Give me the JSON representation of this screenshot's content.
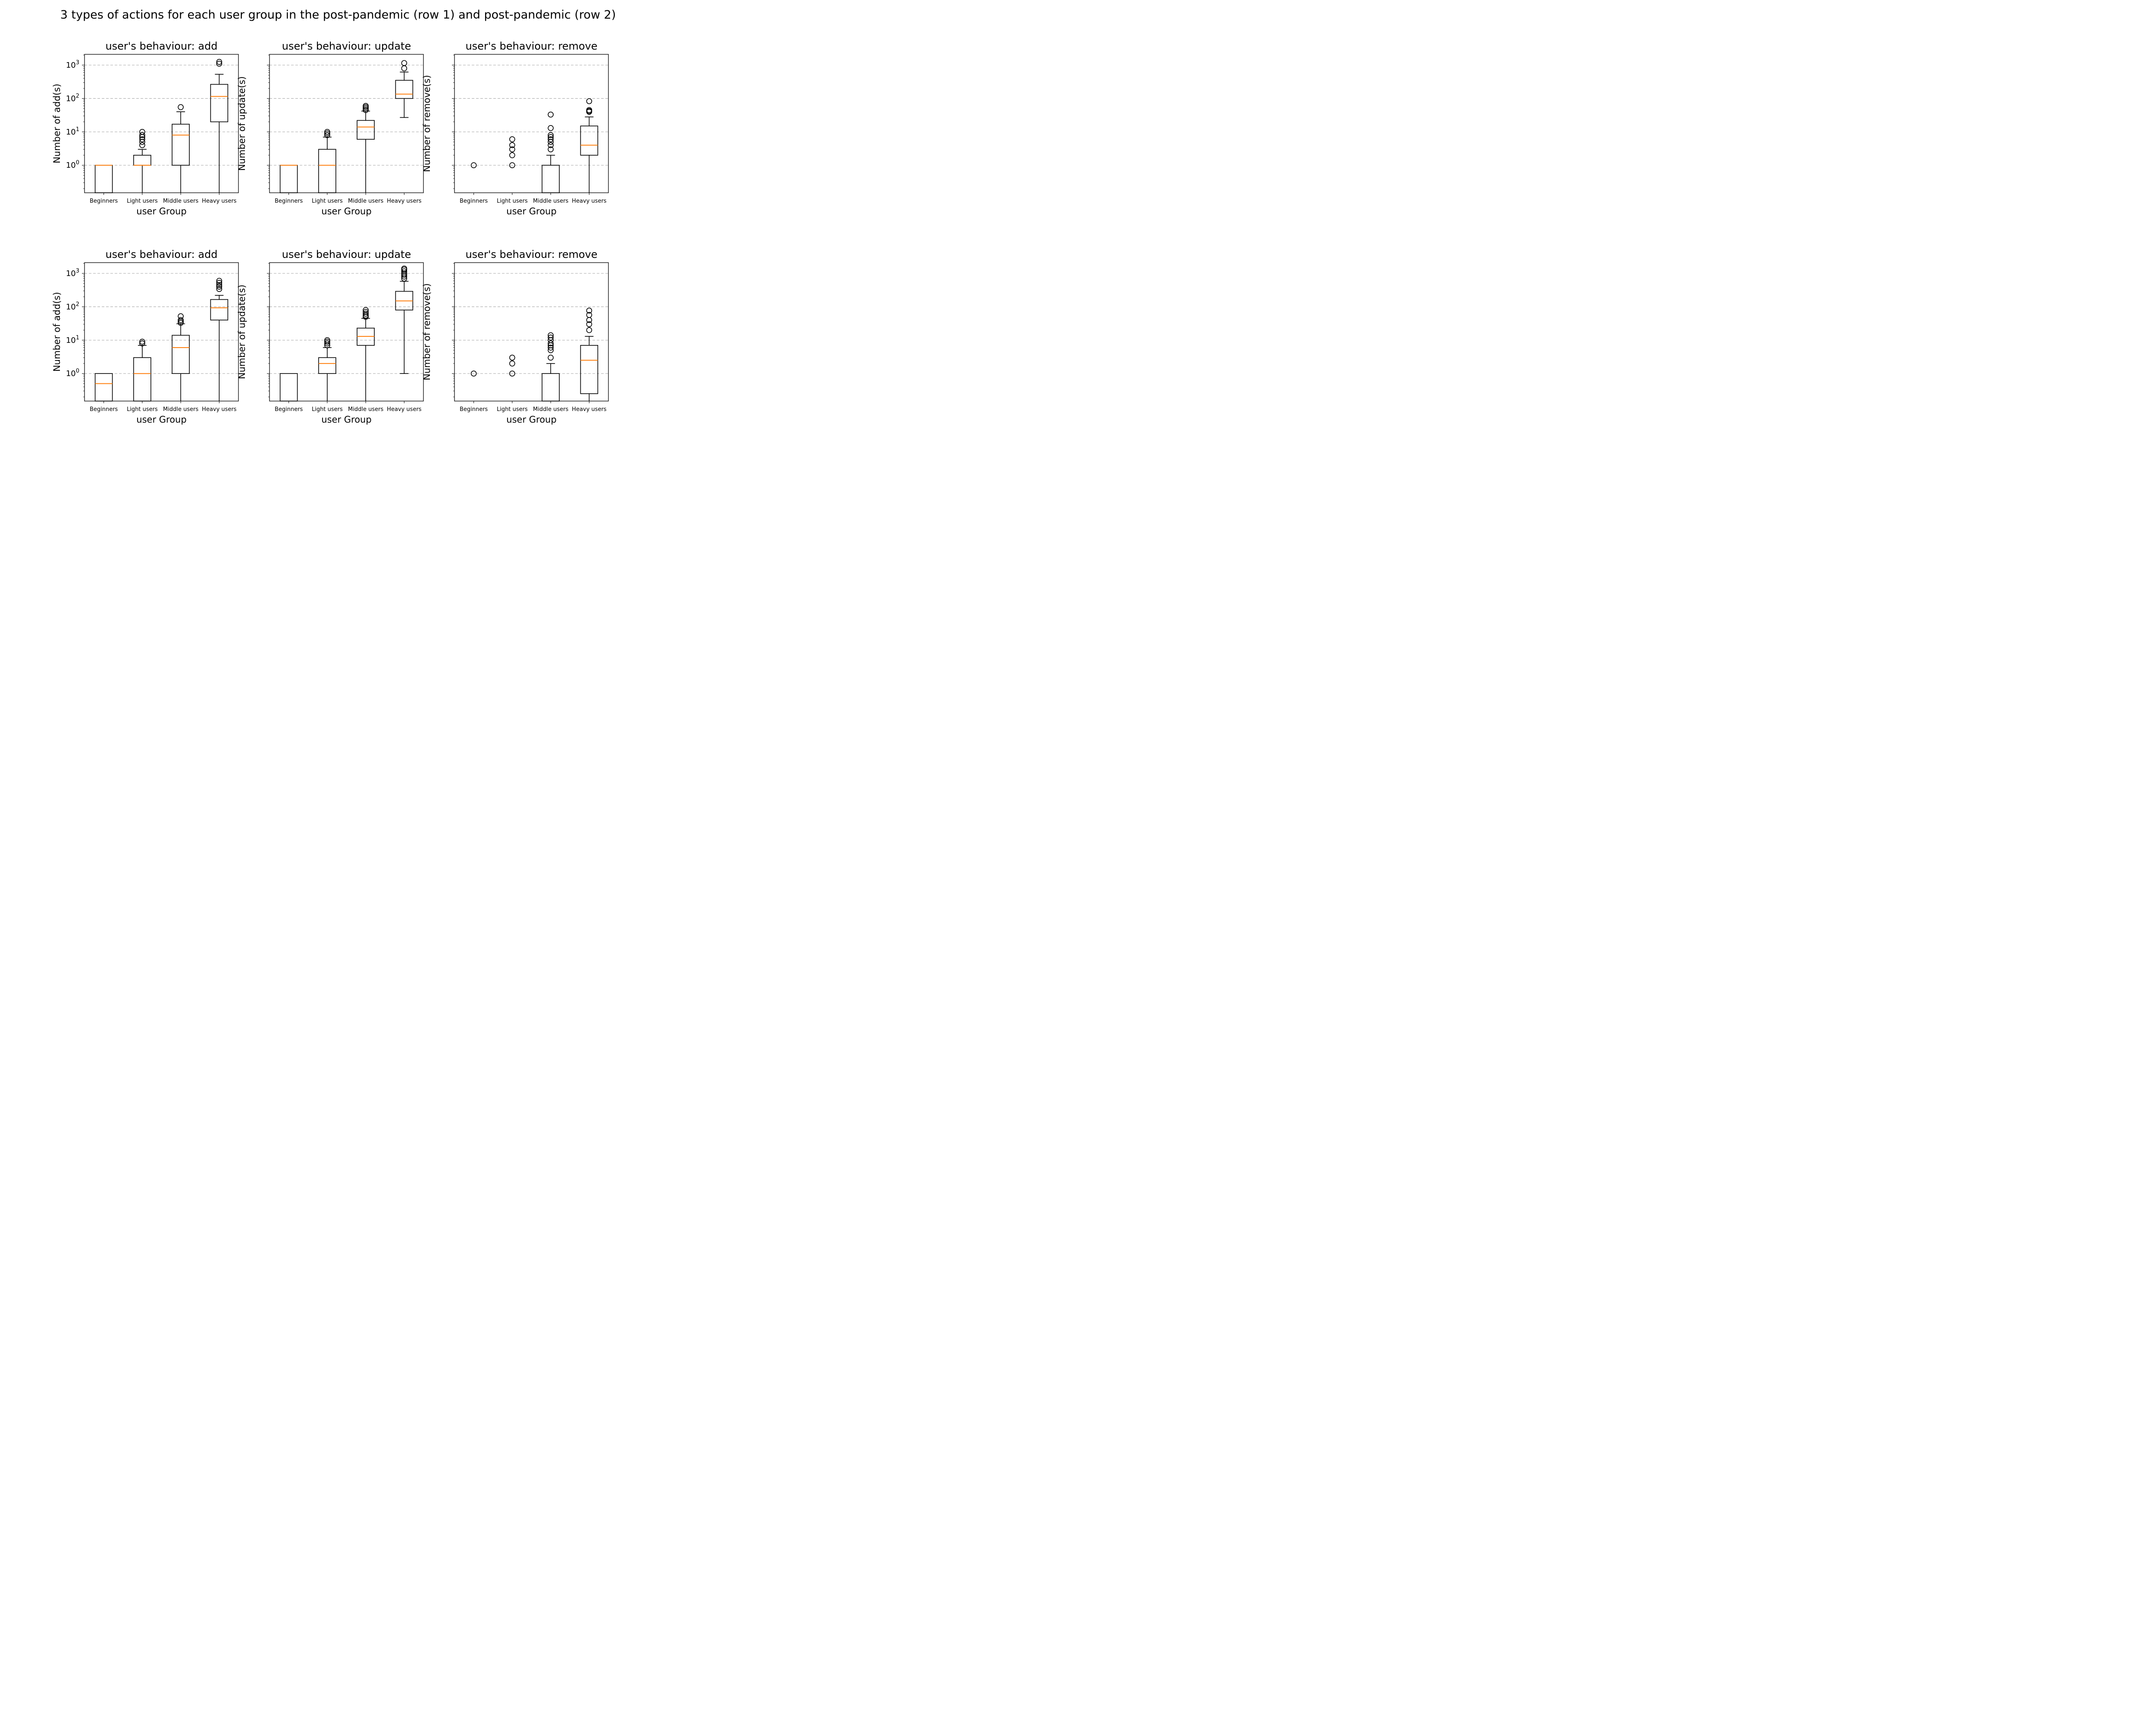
{
  "figure": {
    "title": "3 types of actions for each user group in the post-pandemic (row 1) and post-pandemic (row 2)"
  },
  "colors": {
    "median": "#ff7f0e",
    "box": "#000000",
    "grid": "#b0b0b0"
  },
  "chart_data": [
    {
      "type": "box",
      "title": "user's behaviour: add",
      "xlabel": "user Group",
      "ylabel": "Number of add(s)",
      "yscale": "log",
      "ylim": [
        0.15,
        2100
      ],
      "y_ticks": [
        {
          "value": 1,
          "label": "10^0"
        },
        {
          "value": 10,
          "label": "10^1"
        },
        {
          "value": 100,
          "label": "10^2"
        },
        {
          "value": 1000,
          "label": "10^3"
        }
      ],
      "grid": "y-dashed",
      "categories": [
        "Beginners",
        "Light users",
        "Middle users",
        "Heavy users"
      ],
      "boxes": [
        {
          "q1": 0.15,
          "median": 1,
          "q3": 1,
          "whisker_low": null,
          "whisker_high": null,
          "outliers": []
        },
        {
          "q1": 1,
          "median": 1,
          "q3": 2,
          "whisker_low": 0.15,
          "whisker_high": 3,
          "outliers": [
            4,
            5,
            6,
            7,
            8,
            10
          ]
        },
        {
          "q1": 1,
          "median": 8,
          "q3": 17,
          "whisker_low": 0.15,
          "whisker_high": 40,
          "outliers": [
            55
          ]
        },
        {
          "q1": 20,
          "median": 115,
          "q3": 265,
          "whisker_low": 0.15,
          "whisker_high": 530,
          "outliers": [
            1100,
            1250
          ]
        }
      ]
    },
    {
      "type": "box",
      "title": "user's behaviour: update",
      "xlabel": "user Group",
      "ylabel": "Number of update(s)",
      "yscale": "log",
      "ylim": [
        0.15,
        2100
      ],
      "y_ticks": [],
      "grid": "y-dashed",
      "categories": [
        "Beginners",
        "Light users",
        "Middle users",
        "Heavy users"
      ],
      "boxes": [
        {
          "q1": 0.15,
          "median": 1,
          "q3": 1,
          "whisker_low": null,
          "whisker_high": null,
          "outliers": []
        },
        {
          "q1": 0.15,
          "median": 1,
          "q3": 3,
          "whisker_low": null,
          "whisker_high": 7,
          "outliers": [
            8,
            9,
            10
          ]
        },
        {
          "q1": 6,
          "median": 14,
          "q3": 22,
          "whisker_low": 0.15,
          "whisker_high": 42,
          "outliers": [
            45,
            50,
            55,
            60
          ]
        },
        {
          "q1": 100,
          "median": 135,
          "q3": 350,
          "whisker_low": 27,
          "whisker_high": 620,
          "outliers": [
            800,
            1150
          ]
        }
      ]
    },
    {
      "type": "box",
      "title": "user's behaviour: remove",
      "xlabel": "user Group",
      "ylabel": "Number of remove(s)",
      "yscale": "log",
      "ylim": [
        0.15,
        2100
      ],
      "y_ticks": [],
      "grid": "y-dashed",
      "categories": [
        "Beginners",
        "Light users",
        "Middle users",
        "Heavy users"
      ],
      "boxes": [
        {
          "q1": null,
          "median": null,
          "q3": null,
          "whisker_low": null,
          "whisker_high": null,
          "outliers": [
            1
          ]
        },
        {
          "q1": null,
          "median": null,
          "q3": null,
          "whisker_low": null,
          "whisker_high": null,
          "outliers": [
            1,
            2,
            3,
            4,
            6
          ]
        },
        {
          "q1": 0.15,
          "median": null,
          "q3": 1,
          "whisker_low": null,
          "whisker_high": 2,
          "outliers": [
            3,
            4,
            5,
            6,
            7,
            8,
            13,
            33
          ]
        },
        {
          "q1": 2,
          "median": 4,
          "q3": 15,
          "whisker_low": 0.15,
          "whisker_high": 28,
          "outliers": [
            40,
            42,
            45,
            83
          ]
        }
      ]
    },
    {
      "type": "box",
      "title": "user's behaviour: add",
      "xlabel": "user Group",
      "ylabel": "Number of add(s)",
      "yscale": "log",
      "ylim": [
        0.15,
        2100
      ],
      "y_ticks": [
        {
          "value": 1,
          "label": "10^0"
        },
        {
          "value": 10,
          "label": "10^1"
        },
        {
          "value": 100,
          "label": "10^2"
        },
        {
          "value": 1000,
          "label": "10^3"
        }
      ],
      "grid": "y-dashed",
      "categories": [
        "Beginners",
        "Light users",
        "Middle users",
        "Heavy users"
      ],
      "boxes": [
        {
          "q1": 0.15,
          "median": 0.5,
          "q3": 1,
          "whisker_low": null,
          "whisker_high": null,
          "outliers": []
        },
        {
          "q1": 0.15,
          "median": 1,
          "q3": 3,
          "whisker_low": null,
          "whisker_high": 7,
          "outliers": [
            8,
            9
          ]
        },
        {
          "q1": 1,
          "median": 6,
          "q3": 14,
          "whisker_low": 0.15,
          "whisker_high": 31,
          "outliers": [
            33,
            36,
            40,
            52
          ]
        },
        {
          "q1": 40,
          "median": 93,
          "q3": 165,
          "whisker_low": 0.15,
          "whisker_high": 220,
          "outliers": [
            340,
            400,
            450,
            520,
            600
          ]
        }
      ]
    },
    {
      "type": "box",
      "title": "user's behaviour: update",
      "xlabel": "user Group",
      "ylabel": "Number of update(s)",
      "yscale": "log",
      "ylim": [
        0.15,
        2100
      ],
      "y_ticks": [],
      "grid": "y-dashed",
      "categories": [
        "Beginners",
        "Light users",
        "Middle users",
        "Heavy users"
      ],
      "boxes": [
        {
          "q1": 0.15,
          "median": null,
          "q3": 1,
          "whisker_low": null,
          "whisker_high": null,
          "outliers": []
        },
        {
          "q1": 1,
          "median": 2,
          "q3": 3,
          "whisker_low": 0.15,
          "whisker_high": 6,
          "outliers": [
            7,
            8,
            9,
            10
          ]
        },
        {
          "q1": 7,
          "median": 13,
          "q3": 23,
          "whisker_low": 0.15,
          "whisker_high": 45,
          "outliers": [
            50,
            55,
            62,
            70,
            80
          ]
        },
        {
          "q1": 80,
          "median": 150,
          "q3": 290,
          "whisker_low": 1,
          "whisker_high": 580,
          "outliers": [
            700,
            800,
            900,
            1000,
            1150,
            1300,
            1400
          ]
        }
      ]
    },
    {
      "type": "box",
      "title": "user's behaviour: remove",
      "xlabel": "user Group",
      "ylabel": "Number of remove(s)",
      "yscale": "log",
      "ylim": [
        0.15,
        2100
      ],
      "y_ticks": [],
      "grid": "y-dashed",
      "categories": [
        "Beginners",
        "Light users",
        "Middle users",
        "Heavy users"
      ],
      "boxes": [
        {
          "q1": null,
          "median": null,
          "q3": null,
          "whisker_low": null,
          "whisker_high": null,
          "outliers": [
            1
          ]
        },
        {
          "q1": null,
          "median": null,
          "q3": null,
          "whisker_low": null,
          "whisker_high": null,
          "outliers": [
            1,
            2,
            3
          ]
        },
        {
          "q1": 0.15,
          "median": null,
          "q3": 1,
          "whisker_low": null,
          "whisker_high": 2,
          "outliers": [
            3,
            5,
            6,
            7,
            8,
            10,
            12,
            14
          ]
        },
        {
          "q1": 0.25,
          "median": 2.5,
          "q3": 7,
          "whisker_low": 0.15,
          "whisker_high": 13,
          "outliers": [
            20,
            30,
            40,
            57,
            77
          ]
        }
      ]
    }
  ]
}
